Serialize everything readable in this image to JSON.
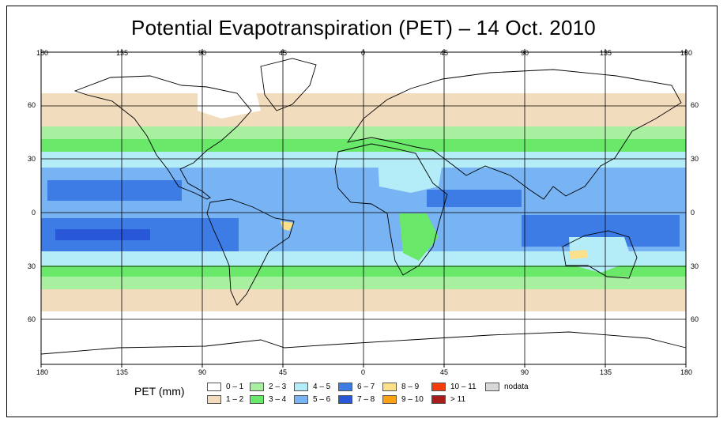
{
  "title": "Potential Evapotranspiration (PET) – 14 Oct. 2010",
  "top_lon_labels": [
    "180",
    "135",
    "90",
    "45",
    "0",
    "45",
    "90",
    "135",
    "180"
  ],
  "bottom_lon_labels": [
    "180",
    "135",
    "90",
    "45",
    "0",
    "45",
    "90",
    "135",
    "180"
  ],
  "left_lat_labels": [
    "60",
    "30",
    "0",
    "30",
    "60"
  ],
  "right_lat_labels": [
    "60",
    "30",
    "0",
    "30",
    "60"
  ],
  "legend": {
    "title": "PET (mm)",
    "items": [
      {
        "label": "0 – 1",
        "color": "#ffffff"
      },
      {
        "label": "1 – 2",
        "color": "#f2dcbe"
      },
      {
        "label": "2 – 3",
        "color": "#a8f0a0"
      },
      {
        "label": "3 – 4",
        "color": "#6ae86a"
      },
      {
        "label": "4 – 5",
        "color": "#b4ecf8"
      },
      {
        "label": "5 – 6",
        "color": "#78b4f4"
      },
      {
        "label": "6 – 7",
        "color": "#3c7ce4"
      },
      {
        "label": "7 – 8",
        "color": "#2858d8"
      },
      {
        "label": "8 – 9",
        "color": "#fce08c"
      },
      {
        "label": "9 – 10",
        "color": "#fca014"
      },
      {
        "label": "10 – 11",
        "color": "#f43c0c"
      },
      {
        "label": "> 11",
        "color": "#a81c1c"
      },
      {
        "label": "nodata",
        "color": "#d8d8d8"
      }
    ]
  }
}
